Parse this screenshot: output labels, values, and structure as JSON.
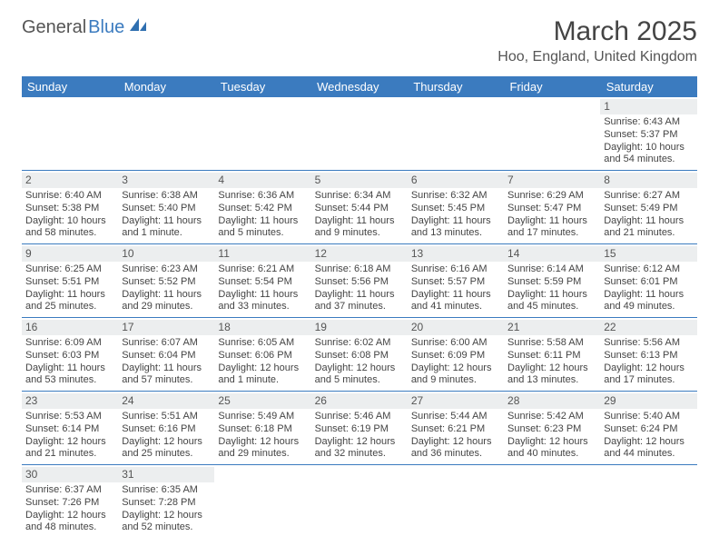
{
  "logo": {
    "text_gray": "General",
    "text_blue": "Blue"
  },
  "title": "March 2025",
  "location": "Hoo, England, United Kingdom",
  "colors": {
    "header_bg": "#3b7bbf",
    "header_text": "#ffffff",
    "daynum_bg": "#eceeef",
    "border": "#3b7bbf",
    "body_text": "#444444"
  },
  "day_headers": [
    "Sunday",
    "Monday",
    "Tuesday",
    "Wednesday",
    "Thursday",
    "Friday",
    "Saturday"
  ],
  "weeks": [
    [
      null,
      null,
      null,
      null,
      null,
      null,
      {
        "n": "1",
        "sr": "Sunrise: 6:43 AM",
        "ss": "Sunset: 5:37 PM",
        "d1": "Daylight: 10 hours",
        "d2": "and 54 minutes."
      }
    ],
    [
      {
        "n": "2",
        "sr": "Sunrise: 6:40 AM",
        "ss": "Sunset: 5:38 PM",
        "d1": "Daylight: 10 hours",
        "d2": "and 58 minutes."
      },
      {
        "n": "3",
        "sr": "Sunrise: 6:38 AM",
        "ss": "Sunset: 5:40 PM",
        "d1": "Daylight: 11 hours",
        "d2": "and 1 minute."
      },
      {
        "n": "4",
        "sr": "Sunrise: 6:36 AM",
        "ss": "Sunset: 5:42 PM",
        "d1": "Daylight: 11 hours",
        "d2": "and 5 minutes."
      },
      {
        "n": "5",
        "sr": "Sunrise: 6:34 AM",
        "ss": "Sunset: 5:44 PM",
        "d1": "Daylight: 11 hours",
        "d2": "and 9 minutes."
      },
      {
        "n": "6",
        "sr": "Sunrise: 6:32 AM",
        "ss": "Sunset: 5:45 PM",
        "d1": "Daylight: 11 hours",
        "d2": "and 13 minutes."
      },
      {
        "n": "7",
        "sr": "Sunrise: 6:29 AM",
        "ss": "Sunset: 5:47 PM",
        "d1": "Daylight: 11 hours",
        "d2": "and 17 minutes."
      },
      {
        "n": "8",
        "sr": "Sunrise: 6:27 AM",
        "ss": "Sunset: 5:49 PM",
        "d1": "Daylight: 11 hours",
        "d2": "and 21 minutes."
      }
    ],
    [
      {
        "n": "9",
        "sr": "Sunrise: 6:25 AM",
        "ss": "Sunset: 5:51 PM",
        "d1": "Daylight: 11 hours",
        "d2": "and 25 minutes."
      },
      {
        "n": "10",
        "sr": "Sunrise: 6:23 AM",
        "ss": "Sunset: 5:52 PM",
        "d1": "Daylight: 11 hours",
        "d2": "and 29 minutes."
      },
      {
        "n": "11",
        "sr": "Sunrise: 6:21 AM",
        "ss": "Sunset: 5:54 PM",
        "d1": "Daylight: 11 hours",
        "d2": "and 33 minutes."
      },
      {
        "n": "12",
        "sr": "Sunrise: 6:18 AM",
        "ss": "Sunset: 5:56 PM",
        "d1": "Daylight: 11 hours",
        "d2": "and 37 minutes."
      },
      {
        "n": "13",
        "sr": "Sunrise: 6:16 AM",
        "ss": "Sunset: 5:57 PM",
        "d1": "Daylight: 11 hours",
        "d2": "and 41 minutes."
      },
      {
        "n": "14",
        "sr": "Sunrise: 6:14 AM",
        "ss": "Sunset: 5:59 PM",
        "d1": "Daylight: 11 hours",
        "d2": "and 45 minutes."
      },
      {
        "n": "15",
        "sr": "Sunrise: 6:12 AM",
        "ss": "Sunset: 6:01 PM",
        "d1": "Daylight: 11 hours",
        "d2": "and 49 minutes."
      }
    ],
    [
      {
        "n": "16",
        "sr": "Sunrise: 6:09 AM",
        "ss": "Sunset: 6:03 PM",
        "d1": "Daylight: 11 hours",
        "d2": "and 53 minutes."
      },
      {
        "n": "17",
        "sr": "Sunrise: 6:07 AM",
        "ss": "Sunset: 6:04 PM",
        "d1": "Daylight: 11 hours",
        "d2": "and 57 minutes."
      },
      {
        "n": "18",
        "sr": "Sunrise: 6:05 AM",
        "ss": "Sunset: 6:06 PM",
        "d1": "Daylight: 12 hours",
        "d2": "and 1 minute."
      },
      {
        "n": "19",
        "sr": "Sunrise: 6:02 AM",
        "ss": "Sunset: 6:08 PM",
        "d1": "Daylight: 12 hours",
        "d2": "and 5 minutes."
      },
      {
        "n": "20",
        "sr": "Sunrise: 6:00 AM",
        "ss": "Sunset: 6:09 PM",
        "d1": "Daylight: 12 hours",
        "d2": "and 9 minutes."
      },
      {
        "n": "21",
        "sr": "Sunrise: 5:58 AM",
        "ss": "Sunset: 6:11 PM",
        "d1": "Daylight: 12 hours",
        "d2": "and 13 minutes."
      },
      {
        "n": "22",
        "sr": "Sunrise: 5:56 AM",
        "ss": "Sunset: 6:13 PM",
        "d1": "Daylight: 12 hours",
        "d2": "and 17 minutes."
      }
    ],
    [
      {
        "n": "23",
        "sr": "Sunrise: 5:53 AM",
        "ss": "Sunset: 6:14 PM",
        "d1": "Daylight: 12 hours",
        "d2": "and 21 minutes."
      },
      {
        "n": "24",
        "sr": "Sunrise: 5:51 AM",
        "ss": "Sunset: 6:16 PM",
        "d1": "Daylight: 12 hours",
        "d2": "and 25 minutes."
      },
      {
        "n": "25",
        "sr": "Sunrise: 5:49 AM",
        "ss": "Sunset: 6:18 PM",
        "d1": "Daylight: 12 hours",
        "d2": "and 29 minutes."
      },
      {
        "n": "26",
        "sr": "Sunrise: 5:46 AM",
        "ss": "Sunset: 6:19 PM",
        "d1": "Daylight: 12 hours",
        "d2": "and 32 minutes."
      },
      {
        "n": "27",
        "sr": "Sunrise: 5:44 AM",
        "ss": "Sunset: 6:21 PM",
        "d1": "Daylight: 12 hours",
        "d2": "and 36 minutes."
      },
      {
        "n": "28",
        "sr": "Sunrise: 5:42 AM",
        "ss": "Sunset: 6:23 PM",
        "d1": "Daylight: 12 hours",
        "d2": "and 40 minutes."
      },
      {
        "n": "29",
        "sr": "Sunrise: 5:40 AM",
        "ss": "Sunset: 6:24 PM",
        "d1": "Daylight: 12 hours",
        "d2": "and 44 minutes."
      }
    ],
    [
      {
        "n": "30",
        "sr": "Sunrise: 6:37 AM",
        "ss": "Sunset: 7:26 PM",
        "d1": "Daylight: 12 hours",
        "d2": "and 48 minutes."
      },
      {
        "n": "31",
        "sr": "Sunrise: 6:35 AM",
        "ss": "Sunset: 7:28 PM",
        "d1": "Daylight: 12 hours",
        "d2": "and 52 minutes."
      },
      null,
      null,
      null,
      null,
      null
    ]
  ]
}
